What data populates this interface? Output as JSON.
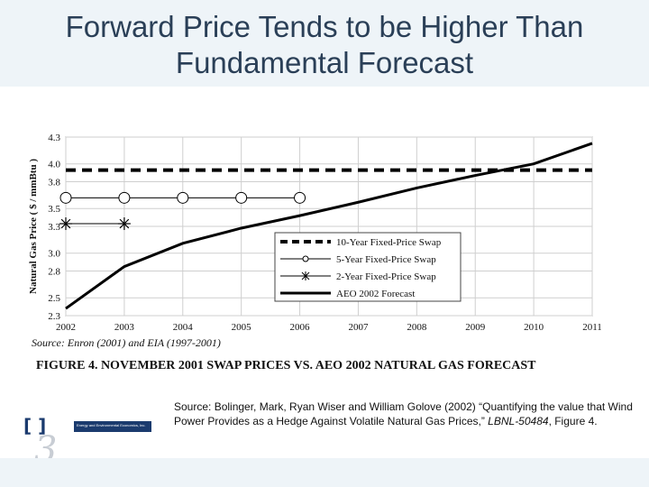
{
  "slide": {
    "title_line1": "Forward Price Tends to be Higher Than",
    "title_line2": "Fundamental Forecast"
  },
  "figure": {
    "caption": "FIGURE 4.  NOVEMBER 2001 SWAP PRICES VS. AEO 2002 NATURAL GAS FORECAST",
    "source_note": "Source: Enron (2001) and EIA (1997-2001)"
  },
  "citation": {
    "prefix": "Source: Bolinger, Mark, Ryan Wiser and William Golove  (2002) “Quantifying the value that Wind Power Provides as a Hedge Against Volatile Natural Gas Prices,” ",
    "report": "LBNL-50484",
    "suffix": ", Figure 4."
  },
  "logo": {
    "bracket": "[ ]",
    "org_name": "Energy and Environmental Economics, Inc.",
    "mark": "3"
  },
  "colors": {
    "title": "#2a3f57",
    "band": "#eef4f8",
    "line": "#000000",
    "logo_blue": "#1b3b6e"
  },
  "chart_data": {
    "type": "line",
    "title": "",
    "xlabel": "",
    "ylabel": "Natural Gas Price ( $ / mmBtu )",
    "x": [
      2002,
      2003,
      2004,
      2005,
      2006,
      2007,
      2008,
      2009,
      2010,
      2011
    ],
    "xlim": [
      2002,
      2011
    ],
    "ylim": [
      2.3,
      4.3
    ],
    "y_ticks": [
      "2.3",
      "2.5",
      "2.8",
      "3.0",
      "3.3",
      "3.5",
      "3.8",
      "4.0",
      "4.3"
    ],
    "y_tick_values": [
      2.3,
      2.5,
      2.8,
      3.0,
      3.3,
      3.5,
      3.8,
      4.0,
      4.3
    ],
    "grid": true,
    "legend_position": "bottom-right",
    "series": [
      {
        "name": "10-Year Fixed-Price Swap",
        "style": "dashed",
        "x": [
          2002,
          2011
        ],
        "values": [
          3.93,
          3.93
        ]
      },
      {
        "name": "5-Year Fixed-Price Swap",
        "style": "circle",
        "x": [
          2002,
          2003,
          2004,
          2005,
          2006
        ],
        "values": [
          3.62,
          3.62,
          3.62,
          3.62,
          3.62
        ]
      },
      {
        "name": "2-Year Fixed-Price Swap",
        "style": "star",
        "x": [
          2002,
          2003
        ],
        "values": [
          3.33,
          3.33
        ]
      },
      {
        "name": "AEO 2002 Forecast",
        "style": "solid",
        "x": [
          2002,
          2003,
          2004,
          2005,
          2006,
          2007,
          2008,
          2009,
          2010,
          2011
        ],
        "values": [
          2.38,
          2.85,
          3.11,
          3.28,
          3.42,
          3.57,
          3.73,
          3.87,
          4.0,
          4.23
        ]
      }
    ]
  }
}
